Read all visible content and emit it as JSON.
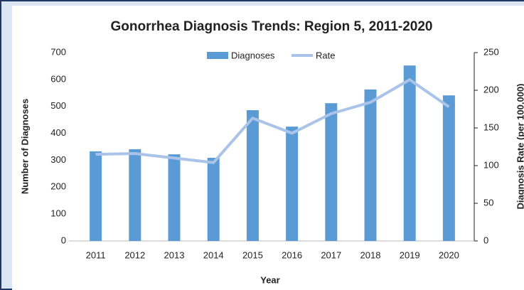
{
  "chart_data": {
    "type": "bar_line",
    "title": "Gonorrhea Diagnosis Trends: Region 5, 2011-2020",
    "x_label": "Year",
    "y_label": "Number of Diagnoses",
    "y2_label": "Diagnosis Rate (per 100,000)",
    "categories": [
      "2011",
      "2012",
      "2013",
      "2014",
      "2015",
      "2016",
      "2017",
      "2018",
      "2019",
      "2020"
    ],
    "series": [
      {
        "name": "Diagnoses",
        "type": "bar",
        "color": "#5b9bd5",
        "values": [
          333,
          341,
          322,
          309,
          486,
          425,
          512,
          563,
          652,
          541
        ]
      },
      {
        "name": "Rate",
        "type": "line",
        "axis": "y2",
        "color": "#a9c4e8",
        "values": [
          115,
          116,
          110,
          104,
          163,
          143,
          169,
          184,
          214,
          178
        ]
      }
    ],
    "ylim": [
      0,
      700
    ],
    "yticks": [
      0,
      100,
      200,
      300,
      400,
      500,
      600,
      700
    ],
    "y2lim": [
      0,
      250
    ],
    "y2ticks": [
      0,
      50,
      100,
      150,
      200,
      250
    ],
    "legend": "top"
  }
}
